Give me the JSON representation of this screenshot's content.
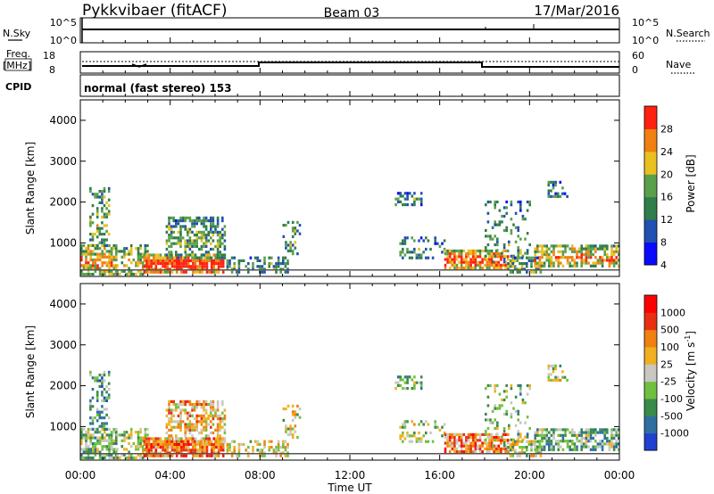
{
  "header": {
    "station": "Pykkvibaer (fitACF)",
    "beam": "Beam 03",
    "date": "17/Mar/2016"
  },
  "nsky_panel": {
    "left_label": "N.Sky",
    "right_label": "N.Search",
    "left_ticks": [
      "10^5",
      "10^0"
    ],
    "right_ticks": [
      "10^5",
      "10^0"
    ]
  },
  "freq_panel": {
    "left_label": "Freq.",
    "left_unit": "[MHz]",
    "right_label": "Nave",
    "left_ticks": [
      "18",
      "8"
    ],
    "right_ticks": [
      "60",
      "0"
    ]
  },
  "cpid": {
    "label": "CPID",
    "value": "normal (fast stereo) 153"
  },
  "chart_data": [
    {
      "type": "heatmap",
      "name": "Power",
      "ylabel": "Slant Range [km]",
      "ylim": [
        180,
        4500
      ],
      "yticks": [
        "1000",
        "2000",
        "3000",
        "4000"
      ],
      "colorbar_label": "Power [dB]",
      "colorbar_ticks": [
        "28",
        "24",
        "20",
        "16",
        "12",
        "8",
        "4"
      ],
      "colors": [
        "#0a0aff",
        "#2050b0",
        "#2e7d4a",
        "#5aa04a",
        "#e8c020",
        "#f08010",
        "#ff2010"
      ]
    },
    {
      "type": "heatmap",
      "name": "Velocity",
      "ylabel": "Slant Range [km]",
      "ylim": [
        180,
        4500
      ],
      "yticks": [
        "1000",
        "2000",
        "3000",
        "4000"
      ],
      "colorbar_label": "Velocity [m s^-1]",
      "colorbar_ticks": [
        "1000",
        "500",
        "100",
        "25",
        "-25",
        "-100",
        "-500",
        "-1000"
      ],
      "colors": [
        "#2040d0",
        "#2e6fa0",
        "#3a8a4a",
        "#70c040",
        "#c8c8c0",
        "#f0b020",
        "#f08010",
        "#e83010",
        "#ff0000"
      ],
      "xlabel": "Time UT",
      "xticks": [
        "00:00",
        "04:00",
        "08:00",
        "12:00",
        "16:00",
        "20:00",
        "00:00"
      ]
    }
  ]
}
